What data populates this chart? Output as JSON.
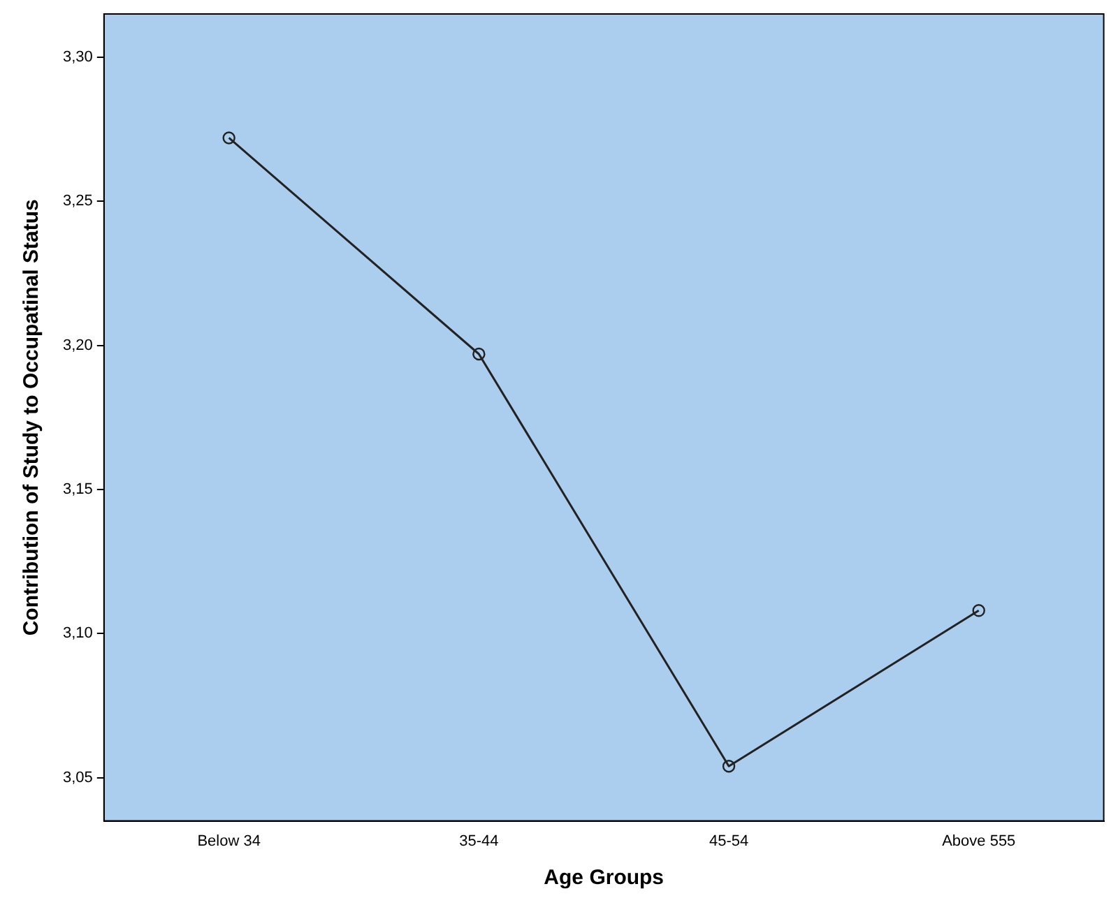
{
  "chart_data": {
    "type": "line",
    "xlabel": "Age Groups",
    "ylabel": "Contribution of Study to Occupatinal Status",
    "categories": [
      "Below 34",
      "35-44",
      "45-54",
      "Above 555"
    ],
    "series": [
      {
        "color": "#222222",
        "values": [
          3.272,
          3.197,
          3.054,
          3.108
        ]
      }
    ],
    "ylim": [
      3.035,
      3.315
    ],
    "yticks": [
      {
        "value": 3.05,
        "label": "3,05"
      },
      {
        "value": 3.1,
        "label": "3,10"
      },
      {
        "value": 3.15,
        "label": "3,15"
      },
      {
        "value": 3.2,
        "label": "3,20"
      },
      {
        "value": 3.25,
        "label": "3,25"
      },
      {
        "value": 3.3,
        "label": "3,30"
      }
    ],
    "grid": false,
    "legend": false,
    "marker": "circle",
    "line_style": "solid"
  }
}
